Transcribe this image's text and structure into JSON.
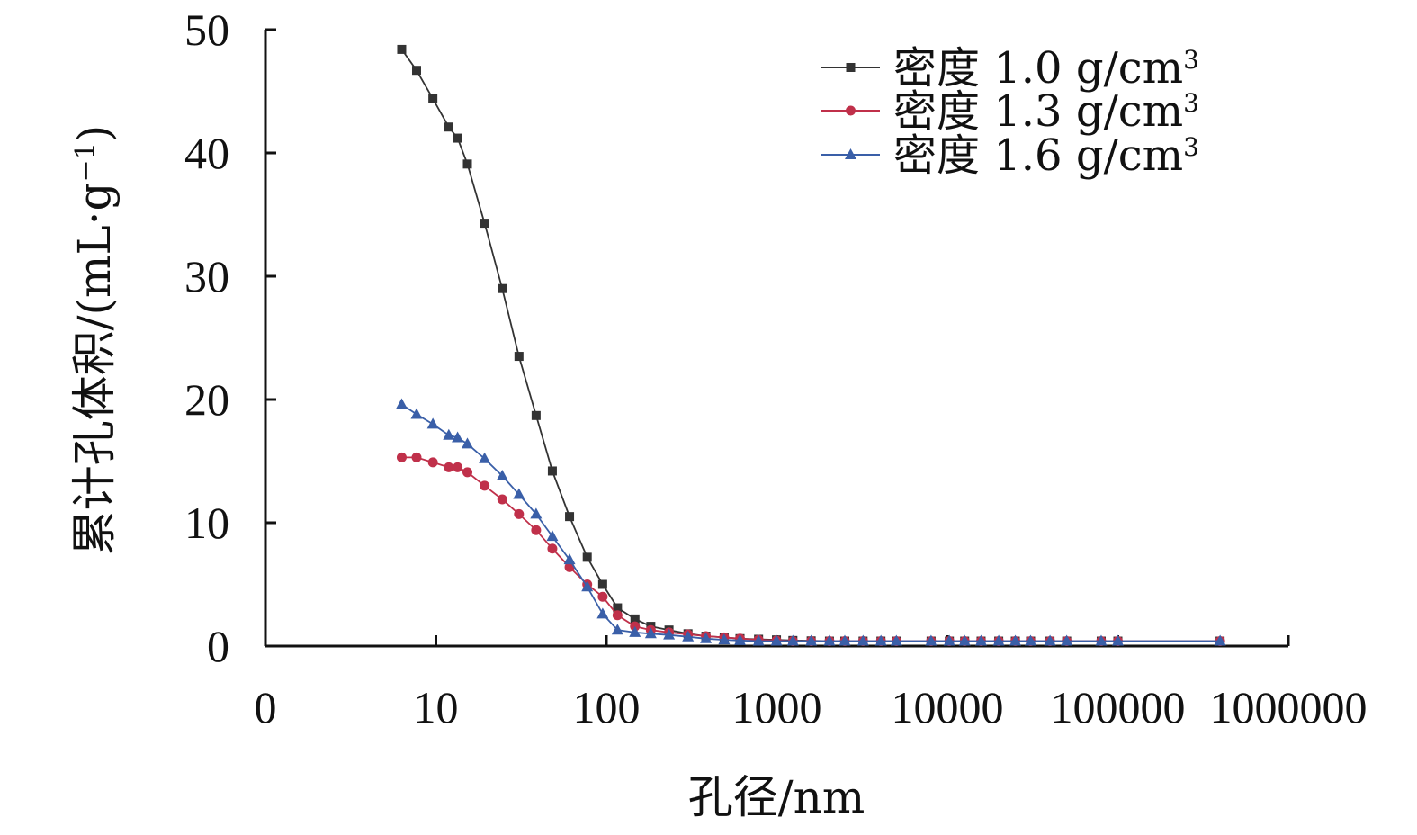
{
  "chart_data": {
    "type": "line",
    "xlabel": "孔径/nm",
    "ylabel": "累计孔体积/(mL·g",
    "ylabel_sup": "−1",
    "ylabel_tail": ")",
    "x_scale": "log",
    "xlim": [
      1,
      1000000
    ],
    "ylim": [
      0,
      50
    ],
    "x_tick_labels": [
      "0",
      "10",
      "100",
      "1000",
      "10000",
      "100000",
      "1000000"
    ],
    "y_tick_labels": [
      "0",
      "10",
      "20",
      "30",
      "40",
      "50"
    ],
    "grid": false,
    "legend_position": "top-right",
    "series": [
      {
        "name": "密度 1.0 g/cm",
        "name_sup": "3",
        "color": "#333333",
        "marker": "square",
        "points": [
          [
            6.3,
            48.4
          ],
          [
            7.7,
            46.7
          ],
          [
            9.6,
            44.4
          ],
          [
            11.9,
            42.1
          ],
          [
            13.4,
            41.2
          ],
          [
            15.3,
            39.1
          ],
          [
            19.3,
            34.3
          ],
          [
            24.5,
            29.0
          ],
          [
            30.7,
            23.5
          ],
          [
            38.7,
            18.7
          ],
          [
            48.2,
            14.2
          ],
          [
            60.8,
            10.5
          ],
          [
            77.2,
            7.2
          ],
          [
            95.1,
            5.0
          ],
          [
            116.2,
            3.1
          ],
          [
            147.1,
            2.2
          ],
          [
            182.2,
            1.6
          ],
          [
            233.0,
            1.3
          ],
          [
            301.1,
            1.0
          ],
          [
            383.4,
            0.8
          ],
          [
            490.7,
            0.7
          ],
          [
            607.7,
            0.6
          ],
          [
            781.1,
            0.55
          ],
          [
            994.5,
            0.5
          ],
          [
            1241.4,
            0.45
          ],
          [
            1589.0,
            0.42
          ],
          [
            2033.9,
            0.4
          ],
          [
            2502.9,
            0.4
          ],
          [
            3203.5,
            0.4
          ],
          [
            4078.6,
            0.4
          ],
          [
            5022.7,
            0.4
          ],
          [
            8024.2,
            0.4
          ],
          [
            10271.0,
            0.4
          ],
          [
            12630.0,
            0.4
          ],
          [
            15768.0,
            0.4
          ],
          [
            20011.0,
            0.4
          ],
          [
            25039.0,
            0.4
          ],
          [
            30766.0,
            0.4
          ],
          [
            40003.0,
            0.4
          ],
          [
            50106.0,
            0.4
          ],
          [
            79850.0,
            0.4
          ],
          [
            100010.0,
            0.4
          ],
          [
            397780.0,
            0.4
          ]
        ]
      },
      {
        "name": "密度 1.3 g/cm",
        "name_sup": "3",
        "color": "#c0304a",
        "marker": "circle",
        "points": [
          [
            6.3,
            15.3
          ],
          [
            7.7,
            15.3
          ],
          [
            9.6,
            14.9
          ],
          [
            11.9,
            14.5
          ],
          [
            13.4,
            14.5
          ],
          [
            15.3,
            14.1
          ],
          [
            19.3,
            13.0
          ],
          [
            24.5,
            11.9
          ],
          [
            30.7,
            10.7
          ],
          [
            38.7,
            9.4
          ],
          [
            48.2,
            7.9
          ],
          [
            60.8,
            6.4
          ],
          [
            77.2,
            5.0
          ],
          [
            95.1,
            4.0
          ],
          [
            116.2,
            2.5
          ],
          [
            147.1,
            1.6
          ],
          [
            182.2,
            1.3
          ],
          [
            233.0,
            1.1
          ],
          [
            301.1,
            0.95
          ],
          [
            383.4,
            0.8
          ],
          [
            490.7,
            0.7
          ],
          [
            607.7,
            0.6
          ],
          [
            781.1,
            0.5
          ],
          [
            994.5,
            0.45
          ],
          [
            1241.4,
            0.4
          ],
          [
            1589.0,
            0.4
          ],
          [
            2033.9,
            0.4
          ],
          [
            2502.9,
            0.4
          ],
          [
            3203.5,
            0.4
          ],
          [
            4078.6,
            0.4
          ],
          [
            5022.7,
            0.4
          ],
          [
            8024.2,
            0.4
          ],
          [
            10271.0,
            0.4
          ],
          [
            12630.0,
            0.4
          ],
          [
            15768.0,
            0.4
          ],
          [
            20011.0,
            0.4
          ],
          [
            25039.0,
            0.4
          ],
          [
            30766.0,
            0.4
          ],
          [
            40003.0,
            0.4
          ],
          [
            50106.0,
            0.4
          ],
          [
            79850.0,
            0.4
          ],
          [
            100010.0,
            0.4
          ],
          [
            397780.0,
            0.4
          ]
        ]
      },
      {
        "name": "密度 1.6 g/cm",
        "name_sup": "3",
        "color": "#3a5fa8",
        "marker": "triangle",
        "points": [
          [
            6.3,
            19.6
          ],
          [
            7.7,
            18.8
          ],
          [
            9.6,
            18.0
          ],
          [
            11.9,
            17.1
          ],
          [
            13.4,
            16.9
          ],
          [
            15.3,
            16.4
          ],
          [
            19.3,
            15.2
          ],
          [
            24.5,
            13.8
          ],
          [
            30.7,
            12.3
          ],
          [
            38.7,
            10.7
          ],
          [
            48.2,
            8.9
          ],
          [
            60.8,
            7.0
          ],
          [
            77.2,
            4.8
          ],
          [
            95.1,
            2.6
          ],
          [
            116.2,
            1.3
          ],
          [
            147.1,
            1.1
          ],
          [
            182.2,
            1.0
          ],
          [
            233.0,
            0.9
          ],
          [
            301.1,
            0.75
          ],
          [
            383.4,
            0.6
          ],
          [
            490.7,
            0.5
          ],
          [
            607.7,
            0.45
          ],
          [
            781.1,
            0.4
          ],
          [
            994.5,
            0.4
          ],
          [
            1241.4,
            0.4
          ],
          [
            1589.0,
            0.4
          ],
          [
            2033.9,
            0.4
          ],
          [
            2502.9,
            0.4
          ],
          [
            3203.5,
            0.4
          ],
          [
            4078.6,
            0.4
          ],
          [
            5022.7,
            0.4
          ],
          [
            8024.2,
            0.4
          ],
          [
            10271.0,
            0.4
          ],
          [
            12630.0,
            0.4
          ],
          [
            15768.0,
            0.4
          ],
          [
            20011.0,
            0.4
          ],
          [
            25039.0,
            0.4
          ],
          [
            30766.0,
            0.4
          ],
          [
            40003.0,
            0.4
          ],
          [
            50106.0,
            0.4
          ],
          [
            79850.0,
            0.4
          ],
          [
            100010.0,
            0.4
          ],
          [
            397780.0,
            0.4
          ]
        ]
      }
    ]
  }
}
